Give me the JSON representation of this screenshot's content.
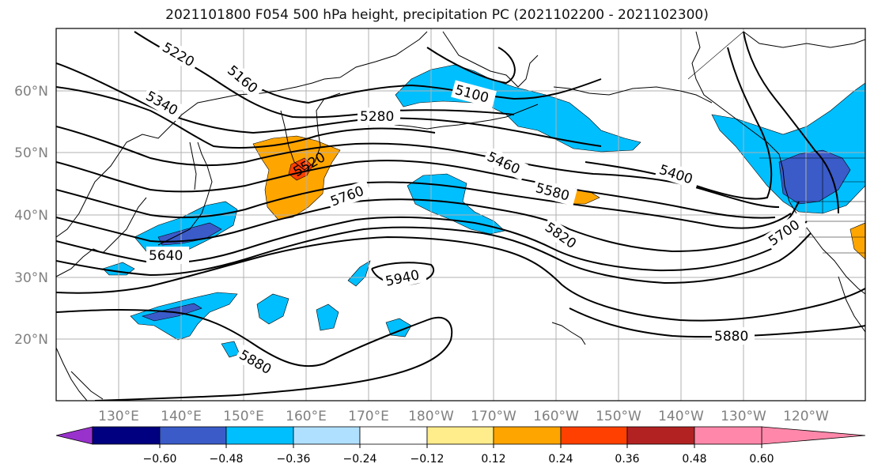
{
  "title": "2021101800 F054 500 hPa height, precipitation PC (2021102200 - 2021102300)",
  "map": {
    "lat_labels": [
      "60°N",
      "50°N",
      "40°N",
      "30°N",
      "20°N"
    ],
    "lon_labels": [
      "130°E",
      "140°E",
      "150°E",
      "160°E",
      "170°E",
      "180°W",
      "170°W",
      "160°W",
      "150°W",
      "140°W",
      "130°W",
      "120°W"
    ],
    "contour_labels": {
      "c5220": "5220",
      "c5160": "5160",
      "c5340": "5340",
      "c5100": "5100",
      "c5280": "5280",
      "c5520": "5520",
      "c5460": "5460",
      "c5400": "5400",
      "c5580": "5580",
      "c5760": "5760",
      "c5820": "5820",
      "c5700": "5700",
      "c5640": "5640",
      "c5940": "5940",
      "c5880a": "5880",
      "c5880b": "5880"
    }
  },
  "colorbar": {
    "ticks": [
      "−0.60",
      "−0.48",
      "−0.36",
      "−0.24",
      "−0.12",
      "0.12",
      "0.24",
      "0.36",
      "0.48",
      "0.60"
    ],
    "colors": [
      "#9932cc",
      "#000080",
      "#3a5bc8",
      "#00bfff",
      "#b0e0ff",
      "#ffffff",
      "#ffec8b",
      "#ffa500",
      "#ff4000",
      "#b22222",
      "#ff88aa"
    ]
  }
}
